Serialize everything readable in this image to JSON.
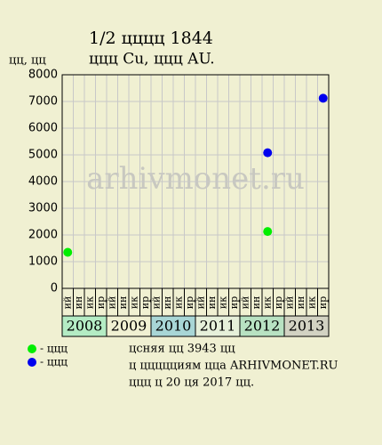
{
  "chart_data": {
    "type": "scatter",
    "title": "1/2 цццц 1844",
    "subtitle": "ццц Cu, ццц AU.",
    "y_label": "цц, цц",
    "watermark": "arhivmonet.ru",
    "categories": [
      "ий",
      "ин",
      "ик",
      "ир",
      "ий",
      "ин",
      "ик",
      "ир",
      "ий",
      "ин",
      "ик",
      "ир",
      "ий",
      "ин",
      "ик",
      "ир",
      "ий",
      "ин",
      "ик",
      "ир",
      "ий",
      "ин",
      "ик",
      "ир"
    ],
    "years": [
      {
        "label": "2008",
        "color": "#b4ecc4"
      },
      {
        "label": "2009",
        "color": "#f0f0d2"
      },
      {
        "label": "2010",
        "color": "#a8d6d6"
      },
      {
        "label": "2011",
        "color": "#e6f0da"
      },
      {
        "label": "2012",
        "color": "#b8e2c2"
      },
      {
        "label": "2013",
        "color": "#d2d2c2"
      }
    ],
    "series": [
      {
        "name": "- ццц",
        "color": "#00ee00",
        "values": [
          1350,
          null,
          null,
          null,
          null,
          null,
          null,
          null,
          null,
          null,
          null,
          null,
          null,
          null,
          null,
          null,
          null,
          null,
          2130,
          null,
          null,
          null,
          null,
          null
        ]
      },
      {
        "name": "- ццц",
        "color": "#0000ee",
        "values": [
          null,
          null,
          null,
          null,
          null,
          null,
          null,
          null,
          null,
          null,
          null,
          null,
          null,
          null,
          null,
          null,
          null,
          null,
          5080,
          null,
          null,
          null,
          null,
          7120
        ]
      }
    ],
    "ylim": [
      0,
      8000
    ],
    "yticks": [
      0,
      1000,
      2000,
      3000,
      4000,
      5000,
      6000,
      7000,
      8000
    ],
    "grid": true,
    "notes": [
      "цсняя цц 3943 цц",
      "ц ццццциям цца ARHIVMONET.RU",
      "ццц ц 20 ця 2017 цц."
    ]
  }
}
